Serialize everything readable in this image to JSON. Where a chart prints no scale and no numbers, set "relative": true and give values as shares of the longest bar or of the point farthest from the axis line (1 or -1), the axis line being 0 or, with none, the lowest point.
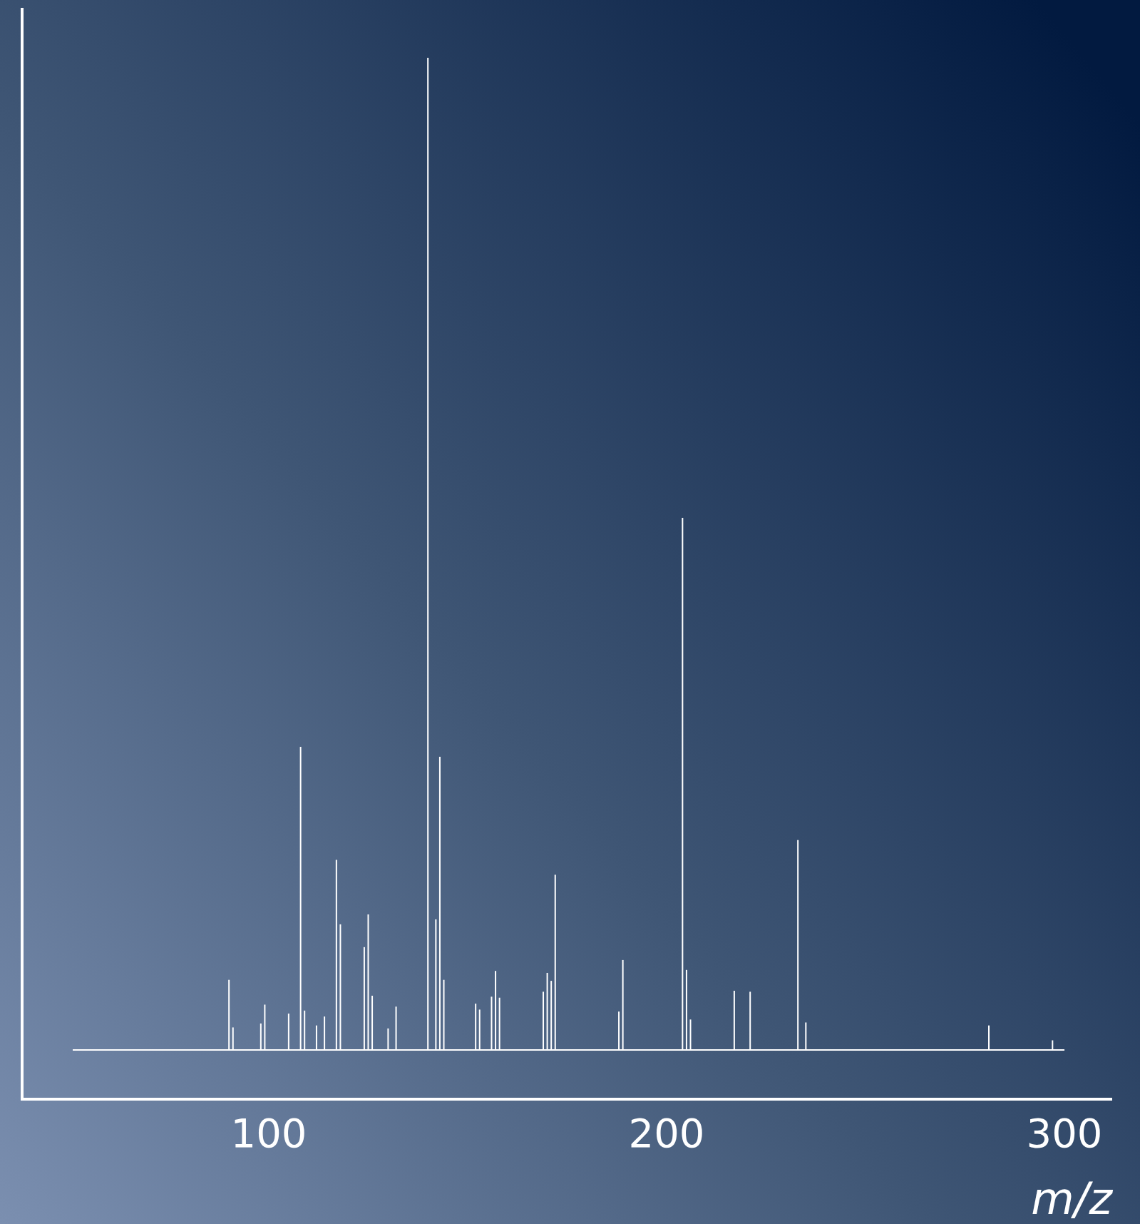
{
  "chart_data": {
    "type": "bar",
    "relative": true,
    "xlabel": "m/z",
    "color": "#ffffff",
    "x": [
      90,
      91,
      98,
      99,
      105,
      108,
      109,
      112,
      114,
      117,
      118,
      124,
      125,
      126,
      130,
      132,
      140,
      142,
      143,
      144,
      152,
      153,
      156,
      157,
      158,
      169,
      170,
      171,
      172,
      188,
      189,
      204,
      205,
      206,
      217,
      221,
      233,
      235,
      281,
      297
    ],
    "values": [
      0.07,
      0.022,
      0.026,
      0.045,
      0.036,
      0.305,
      0.039,
      0.024,
      0.033,
      0.191,
      0.126,
      0.103,
      0.136,
      0.054,
      0.021,
      0.043,
      1.0,
      0.131,
      0.295,
      0.07,
      0.046,
      0.04,
      0.053,
      0.079,
      0.052,
      0.058,
      0.077,
      0.069,
      0.176,
      0.038,
      0.09,
      0.536,
      0.08,
      0.03,
      0.059,
      0.058,
      0.211,
      0.027,
      0.024,
      0.009
    ],
    "xlim": [
      38,
      312
    ],
    "xticks": [
      100,
      200,
      300
    ],
    "grid": false
  }
}
